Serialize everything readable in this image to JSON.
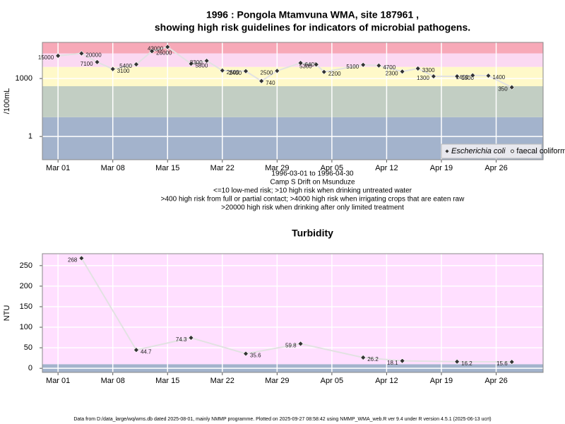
{
  "chart_data": [
    {
      "type": "line",
      "title": "1996 : Pongola Mtamvuna WMA, site 187961 ,",
      "subtitle": "showing high risk guidelines for indicators of microbial pathogens.",
      "ylabel": "/100mL",
      "annotations": [
        "1996-03-01 to 1996-04-30",
        "Camp S Drift on Msunduze",
        "<=10 low-med risk; >10 high risk when drinking untreated water",
        ">400 high risk from full or partial contact; >4000 high risk when irrigating crops that are eaten raw",
        ">20000 high risk when drinking after only limited treatment"
      ],
      "x": [
        "1996-03-01",
        "1996-03-04",
        "1996-03-06",
        "1996-03-08",
        "1996-03-11",
        "1996-03-13",
        "1996-03-15",
        "1996-03-18",
        "1996-03-20",
        "1996-03-22",
        "1996-03-25",
        "1996-03-27",
        "1996-03-29",
        "1996-04-01",
        "1996-04-03",
        "1996-04-04",
        "1996-04-09",
        "1996-04-11",
        "1996-04-14",
        "1996-04-16",
        "1996-04-18",
        "1996-04-21",
        "1996-04-23",
        "1996-04-25",
        "1996-04-28"
      ],
      "series": [
        {
          "name": "Escherichia coli",
          "color": "#333333",
          "marker": "diamond",
          "values": [
            15000,
            20000,
            7100,
            3100,
            5400,
            26000,
            43000,
            5800,
            8300,
            2600,
            2400,
            740,
            2500,
            6400,
            5300,
            2200,
            5100,
            4700,
            2300,
            3300,
            1300,
            1300,
            1450,
            1400,
            350
          ]
        },
        {
          "name": "faecal coliforms",
          "color": "#333333",
          "marker": "circle",
          "values": [
            null,
            null,
            null,
            null,
            null,
            null,
            null,
            null,
            null,
            null,
            null,
            null,
            null,
            null,
            null,
            null,
            null,
            null,
            null,
            null,
            null,
            null,
            null,
            null,
            null
          ]
        }
      ],
      "xlim": [
        "1996-02-28",
        "1996-05-02"
      ],
      "xticks": [
        {
          "value": "1996-03-01",
          "label": "Mar 01"
        },
        {
          "value": "1996-03-08",
          "label": "Mar 08"
        },
        {
          "value": "1996-03-15",
          "label": "Mar 15"
        },
        {
          "value": "1996-03-22",
          "label": "Mar 22"
        },
        {
          "value": "1996-03-29",
          "label": "Mar 29"
        },
        {
          "value": "1996-04-05",
          "label": "Apr 05"
        },
        {
          "value": "1996-04-12",
          "label": "Apr 12"
        },
        {
          "value": "1996-04-19",
          "label": "Apr 19"
        },
        {
          "value": "1996-04-26",
          "label": "Apr 26"
        }
      ],
      "ylim": [
        0.063,
        74000
      ],
      "yticks": [
        1,
        1000
      ],
      "log_scale": true,
      "grid": true,
      "band_breaks": [
        10,
        400,
        4000,
        20000
      ],
      "band_colors": [
        "#a3b3cc",
        "#c2cec3",
        "#fff9c9",
        "#fbd9f2",
        "#f7a9b8"
      ],
      "legend": "bottom-right"
    },
    {
      "type": "line",
      "title": "Turbidity",
      "ylabel": "NTU",
      "x": [
        "1996-03-04",
        "1996-03-11",
        "1996-03-18",
        "1996-03-25",
        "1996-04-01",
        "1996-04-09",
        "1996-04-14",
        "1996-04-21",
        "1996-04-28"
      ],
      "series": [
        {
          "color": "#333333",
          "marker": "diamond",
          "values": [
            268,
            44.7,
            74.3,
            35.6,
            59.8,
            26.2,
            18.1,
            16.2,
            15.6
          ]
        }
      ],
      "xlim": [
        "1996-02-28",
        "1996-05-02"
      ],
      "xticks": [
        {
          "value": "1996-03-01",
          "label": "Mar 01"
        },
        {
          "value": "1996-03-08",
          "label": "Mar 08"
        },
        {
          "value": "1996-03-15",
          "label": "Mar 15"
        },
        {
          "value": "1996-03-22",
          "label": "Mar 22"
        },
        {
          "value": "1996-03-29",
          "label": "Mar 29"
        },
        {
          "value": "1996-04-05",
          "label": "Apr 05"
        },
        {
          "value": "1996-04-12",
          "label": "Apr 12"
        },
        {
          "value": "1996-04-19",
          "label": "Apr 19"
        },
        {
          "value": "1996-04-26",
          "label": "Apr 26"
        }
      ],
      "ylim": [
        -10,
        279
      ],
      "yticks": [
        0,
        50,
        100,
        150,
        200,
        250
      ],
      "log_scale": false,
      "grid": true,
      "band_breaks": [
        10
      ],
      "band_colors": [
        "#a3b3cc",
        "#ffdfff"
      ]
    }
  ],
  "footer": "Data from D:/data_large/wq/wms.db dated 2025-08-01, mainly NMMP programme. Plotted on 2025-09-27 08:58:42 using NMMP_WMA_web.R ver 9.4 under R version 4.5.1 (2025-06-13 ucrt)"
}
